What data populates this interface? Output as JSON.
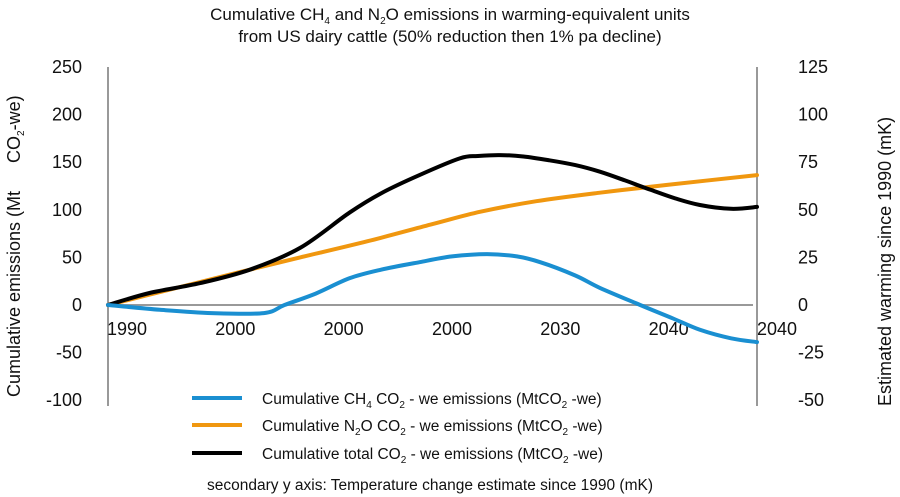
{
  "chart_data": {
    "type": "line",
    "title": {
      "line1_parts": [
        "Cumulative CH",
        "4",
        " and N",
        "2",
        "O emissions in warming-equivalent units"
      ],
      "line2": "from US dairy cattle (50% reduction then 1% pa decline)"
    },
    "ylabel": {
      "main": "Cumulative emissions (Mt",
      "unit_parts": [
        "CO",
        "2",
        "-we)"
      ]
    },
    "y2label": "Estimated warming since 1990 (mK)",
    "note": "secondary y axis: Temperature change estimate since 1990 (mK)",
    "xlim": [
      1990,
      2040
    ],
    "ylim": [
      -100,
      250
    ],
    "y2lim": [
      -50,
      125
    ],
    "y_ticks": [
      250,
      200,
      150,
      100,
      50,
      0,
      -50,
      -100
    ],
    "y2_ticks": [
      125,
      100,
      75,
      50,
      25,
      0,
      -25,
      -50
    ],
    "x_tick_labels": [
      "1990",
      "2000",
      "2000",
      "2000",
      "2030",
      "2040",
      "2040"
    ],
    "grid": false,
    "legend_position": "bottom",
    "series": [
      {
        "name": "Cumulative CH4 CO2 - we emissions (MtCO2 -we)",
        "legend_parts": [
          "Cumulative CH",
          "4",
          " CO",
          "2",
          " - we emissions (MtCO",
          "2",
          " -we)"
        ],
        "color": "#1a8fd1",
        "x": [
          1990,
          1994,
          1998,
          2002,
          2003.6,
          2006,
          2008.6,
          2011,
          2014,
          2016.5,
          2019.2,
          2021.5,
          2023.3,
          2026,
          2027.9,
          2031,
          2033.5,
          2035.6,
          2038,
          2040
        ],
        "values": [
          0,
          -5,
          -8.5,
          -8.5,
          0,
          12,
          28,
          37,
          45,
          51,
          53.5,
          51,
          45,
          31,
          18,
          0,
          -14,
          -26,
          -35,
          -39
        ]
      },
      {
        "name": "Cumulative N2O CO2 - we emissions (MtCO2 -we)",
        "legend_parts": [
          "Cumulative N",
          "2",
          "O CO",
          "2",
          " - we emissions (MtCO",
          "2",
          " -we)"
        ],
        "color": "#f0970f",
        "x": [
          1990,
          1995,
          2000,
          2004.8,
          2010,
          2015,
          2018.7,
          2023,
          2027.9,
          2033,
          2040
        ],
        "values": [
          0,
          17,
          34,
          50,
          67,
          85,
          98,
          109,
          118,
          126,
          136.5
        ]
      },
      {
        "name": "Cumulative total CO2 - we emissions (MtCO2 -we)",
        "legend_parts": [
          "Cumulative total CO",
          "2",
          " - we emissions (MtCO",
          "2",
          " -we)"
        ],
        "color": "#000000",
        "x": [
          1990,
          1993.2,
          1997.1,
          2000.9,
          2004.8,
          2008.6,
          2011,
          2014,
          2017.1,
          2018.5,
          2020.2,
          2022,
          2024,
          2026,
          2027.9,
          2029.8,
          2031.8,
          2033.7,
          2035.6,
          2038,
          2040
        ],
        "values": [
          0,
          12.6,
          23,
          37,
          60,
          97,
          117,
          136.5,
          154,
          156.5,
          157.5,
          156,
          152,
          147,
          140,
          131,
          121,
          112,
          105,
          101,
          103
        ]
      }
    ]
  }
}
